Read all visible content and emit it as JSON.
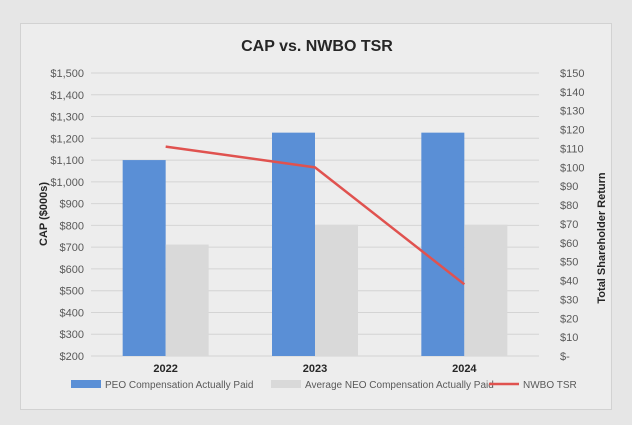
{
  "chart_data": {
    "type": "bar",
    "title": "CAP vs. NWBO TSR",
    "categories": [
      "2022",
      "2023",
      "2024"
    ],
    "ylabel": "CAP ($000s)",
    "y2label": "Total Shareholder Return",
    "ylim": [
      200,
      1500
    ],
    "y2lim": [
      0,
      150
    ],
    "y_ticks": [
      "$200",
      "$300",
      "$400",
      "$500",
      "$600",
      "$700",
      "$800",
      "$900",
      "$1,000",
      "$1,100",
      "$1,200",
      "$1,300",
      "$1,400",
      "$1,500"
    ],
    "y2_ticks": [
      "$-",
      "$10",
      "$20",
      "$30",
      "$40",
      "$50",
      "$60",
      "$70",
      "$80",
      "$90",
      "$100",
      "$110",
      "$120",
      "$130",
      "$140",
      "$150"
    ],
    "grid": true,
    "legend_position": "bottom",
    "series": [
      {
        "name": "PEO Compensation Actually Paid",
        "type": "bar",
        "axis": "left",
        "color": "#5a8fd6",
        "values": [
          1100,
          1226,
          1226
        ]
      },
      {
        "name": "Average NEO Compensation Actually Paid",
        "type": "bar",
        "axis": "left",
        "color": "#d9d9d9",
        "values": [
          712,
          803,
          803
        ]
      },
      {
        "name": "NWBO TSR",
        "type": "line",
        "axis": "right",
        "color": "#e0524f",
        "values": [
          111,
          100,
          38
        ]
      }
    ]
  }
}
